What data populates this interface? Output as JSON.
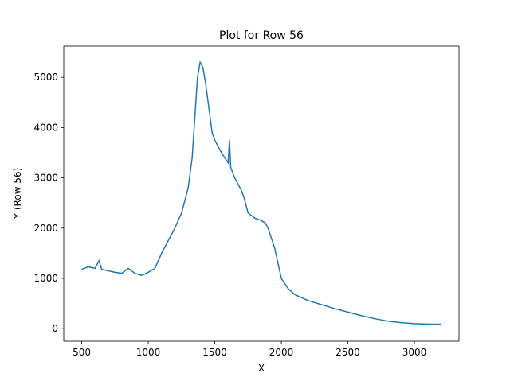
{
  "chart_data": {
    "type": "line",
    "title": "Plot for Row 56",
    "x_label": "X",
    "y_label": "Y (Row 56)",
    "x": [
      500,
      550,
      600,
      630,
      650,
      700,
      750,
      800,
      850,
      900,
      950,
      1000,
      1050,
      1100,
      1150,
      1200,
      1250,
      1300,
      1330,
      1350,
      1370,
      1390,
      1410,
      1430,
      1450,
      1480,
      1500,
      1550,
      1600,
      1610,
      1620,
      1650,
      1700,
      1720,
      1750,
      1800,
      1850,
      1880,
      1900,
      1950,
      2000,
      2050,
      2100,
      2200,
      2300,
      2400,
      2500,
      2600,
      2700,
      2800,
      2900,
      3000,
      3100,
      3200
    ],
    "values": [
      1180,
      1230,
      1200,
      1350,
      1180,
      1150,
      1120,
      1100,
      1200,
      1100,
      1060,
      1120,
      1200,
      1500,
      1750,
      2000,
      2300,
      2800,
      3400,
      4200,
      5000,
      5300,
      5200,
      4900,
      4500,
      3900,
      3750,
      3500,
      3300,
      3750,
      3200,
      3000,
      2750,
      2600,
      2300,
      2200,
      2150,
      2100,
      2000,
      1600,
      1000,
      800,
      680,
      560,
      480,
      400,
      330,
      260,
      200,
      150,
      120,
      100,
      90,
      90
    ],
    "color": "#1f77b4",
    "xlim": [
      365,
      3335
    ],
    "ylim": [
      -250,
      5620
    ],
    "xticks": [
      500,
      1000,
      1500,
      2000,
      2500,
      3000
    ],
    "yticks": [
      0,
      1000,
      2000,
      3000,
      4000,
      5000
    ]
  }
}
